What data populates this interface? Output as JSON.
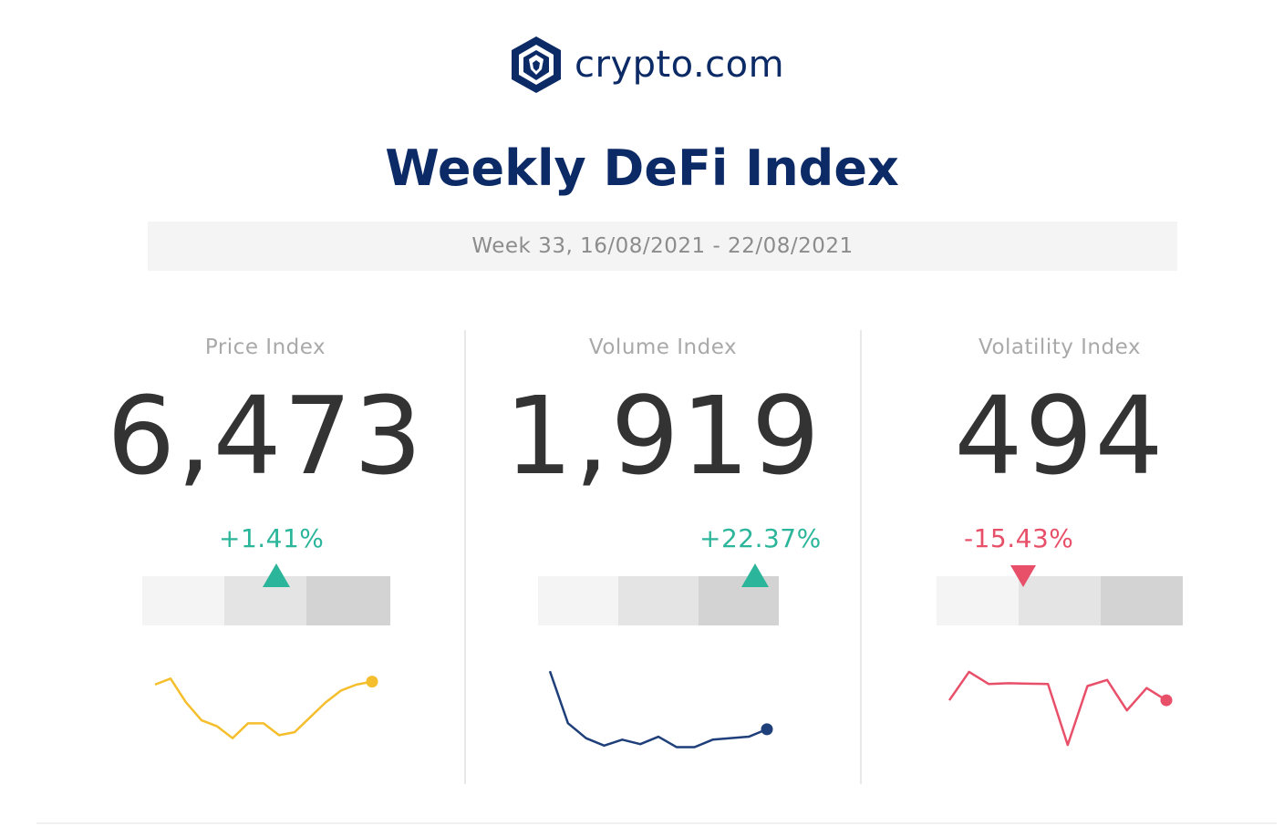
{
  "brand": {
    "name": "crypto.com",
    "color": "#0b2a66"
  },
  "title": "Weekly DeFi Index",
  "period": "Week 33, 16/08/2021 - 22/08/2021",
  "colors": {
    "positive": "#2bb59a",
    "negative": "#e8506a",
    "gauge_light": "#f4f4f4",
    "gauge_mid": "#e4e4e4",
    "gauge_dark": "#d3d3d3"
  },
  "chart_data": [
    {
      "type": "line",
      "name": "Price Index",
      "value_label": "6,473",
      "change_label": "+1.41%",
      "direction": "up",
      "gauge_position": 0.54,
      "line_color": "#f5be2c",
      "values": [
        63,
        65,
        57,
        51,
        49,
        45,
        50,
        50,
        46,
        47,
        52,
        57,
        61,
        63,
        64
      ],
      "ylim": [
        40,
        70
      ]
    },
    {
      "type": "line",
      "name": "Volume Index",
      "value_label": "1,919",
      "change_label": "+22.37%",
      "direction": "up",
      "gauge_position": 0.9,
      "line_color": "#1f3f7a",
      "values": [
        1900,
        1550,
        1450,
        1400,
        1440,
        1410,
        1460,
        1390,
        1390,
        1440,
        1450,
        1460,
        1510
      ],
      "ylim": [
        1350,
        1950
      ]
    },
    {
      "type": "line",
      "name": "Volatility Index",
      "value_label": "494",
      "change_label": "-15.43%",
      "direction": "down",
      "gauge_position": 0.35,
      "line_color": "#e8506a",
      "values": [
        530,
        600,
        570,
        572,
        571,
        570,
        420,
        565,
        580,
        505,
        560,
        530
      ],
      "ylim": [
        400,
        620
      ]
    }
  ]
}
